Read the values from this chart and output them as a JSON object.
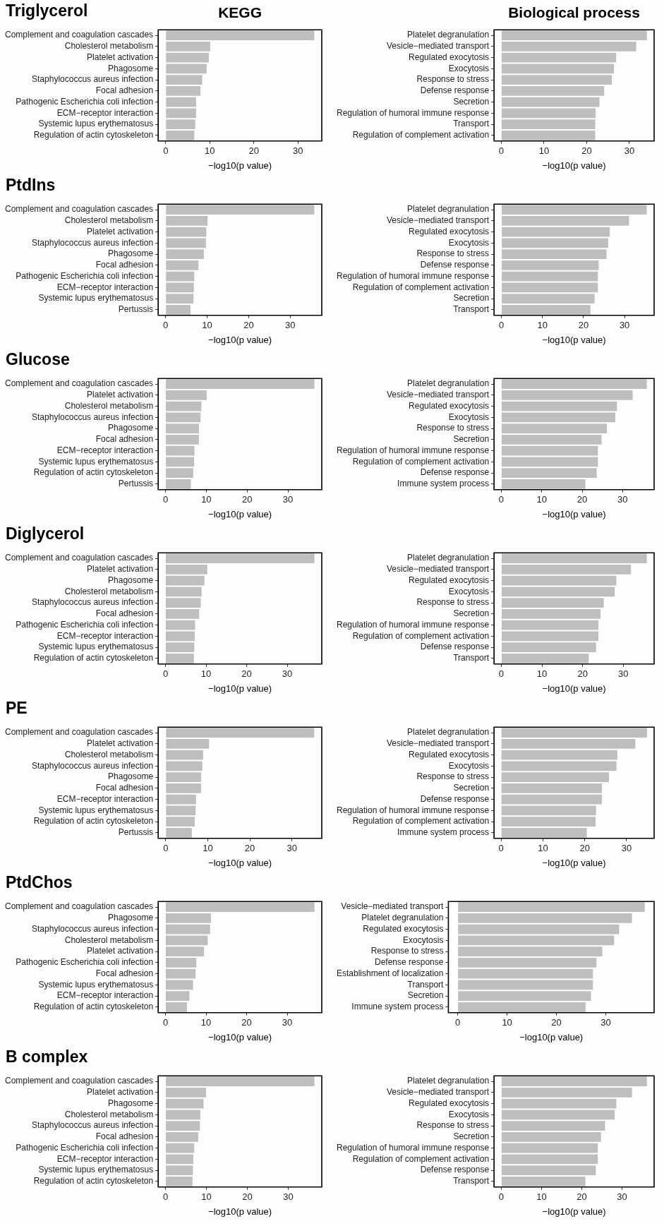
{
  "chart_data": [
    {
      "type": "bar",
      "orientation": "horizontal",
      "title": "Triglycerol",
      "subtitle": "KEGG",
      "categories": [
        "Complement and coagulation cascades",
        "Cholesterol metabolism",
        "Platelet activation",
        "Phagosome",
        "Staphylococcus aureus infection",
        "Focal adhesion",
        "Pathogenic Escherichia coli infection",
        "ECM−receptor interaction",
        "Systemic lupus erythematosus",
        "Regulation of actin cytoskeleton"
      ],
      "values": [
        33.7,
        10.1,
        9.8,
        9.3,
        8.3,
        7.9,
        6.9,
        6.9,
        6.7,
        6.5
      ],
      "color": "#bebebe",
      "xlim": [
        -1.7,
        35.4
      ],
      "xticks": [
        0,
        10,
        20,
        30
      ],
      "xlabel": "−log10(p value)"
    },
    {
      "type": "bar",
      "orientation": "horizontal",
      "subtitle": "Biological process",
      "categories": [
        "Platelet degranulation",
        "Vesicle−mediated transport",
        "Regulated exocytosis",
        "Exocytosis",
        "Response to stress",
        "Defense response",
        "Secretion",
        "Regulation of humoral immune response",
        "Transport",
        "Regulation of complement activation"
      ],
      "values": [
        34.1,
        31.6,
        26.9,
        26.4,
        25.9,
        24.1,
        23.0,
        22.1,
        22.0,
        22.0
      ],
      "color": "#bebebe",
      "xlim": [
        -1.7,
        35.8
      ],
      "xticks": [
        0,
        10,
        20,
        30
      ],
      "xlabel": "−log10(p value)"
    },
    {
      "type": "bar",
      "orientation": "horizontal",
      "title": "PtdIns",
      "categories": [
        "Complement and coagulation cascades",
        "Cholesterol metabolism",
        "Platelet activation",
        "Staphylococcus aureus infection",
        "Phagosome",
        "Focal adhesion",
        "Pathogenic Escherichia coli infection",
        "ECM−receptor interaction",
        "Systemic lupus erythematosus",
        "Pertussis"
      ],
      "values": [
        35.8,
        10.1,
        9.8,
        9.7,
        9.2,
        7.9,
        6.9,
        6.8,
        6.7,
        6.0
      ],
      "color": "#bebebe",
      "xlim": [
        -1.8,
        37.6
      ],
      "xticks": [
        0,
        10,
        20,
        30
      ],
      "xlabel": "−log10(p value)"
    },
    {
      "type": "bar",
      "orientation": "horizontal",
      "categories": [
        "Platelet degranulation",
        "Vesicle−mediated transport",
        "Regulated exocytosis",
        "Exocytosis",
        "Response to stress",
        "Defense response",
        "Regulation of humoral immune response",
        "Regulation of complement activation",
        "Secretion",
        "Transport"
      ],
      "values": [
        35.4,
        31.1,
        26.4,
        26.0,
        25.6,
        23.7,
        23.5,
        23.5,
        22.7,
        21.7
      ],
      "color": "#bebebe",
      "xlim": [
        -1.8,
        37.2
      ],
      "xticks": [
        0,
        10,
        20,
        30
      ],
      "xlabel": "−log10(p value)"
    },
    {
      "type": "bar",
      "orientation": "horizontal",
      "title": "Glucose",
      "categories": [
        "Complement and coagulation cascades",
        "Platelet activation",
        "Cholesterol metabolism",
        "Staphylococcus aureus infection",
        "Phagosome",
        "Focal adhesion",
        "ECM−receptor interaction",
        "Systemic lupus erythematosus",
        "Regulation of actin cytoskeleton",
        "Pertussis"
      ],
      "values": [
        36.5,
        10.1,
        8.8,
        8.6,
        8.2,
        8.2,
        7.1,
        7.0,
        6.8,
        6.2
      ],
      "color": "#bebebe",
      "xlim": [
        -1.8,
        38.3
      ],
      "xticks": [
        0,
        10,
        20,
        30
      ],
      "xlabel": "−log10(p value)"
    },
    {
      "type": "bar",
      "orientation": "horizontal",
      "categories": [
        "Platelet degranulation",
        "Vesicle−mediated transport",
        "Regulated exocytosis",
        "Exocytosis",
        "Response to stress",
        "Secretion",
        "Regulation of humoral immune response",
        "Regulation of complement activation",
        "Defense response",
        "Immune system process"
      ],
      "values": [
        36.0,
        32.5,
        28.6,
        28.2,
        26.1,
        24.8,
        23.9,
        23.9,
        23.6,
        20.8
      ],
      "color": "#bebebe",
      "xlim": [
        -1.8,
        37.8
      ],
      "xticks": [
        0,
        10,
        20,
        30
      ],
      "xlabel": "−log10(p value)"
    },
    {
      "type": "bar",
      "orientation": "horizontal",
      "title": "Diglycerol",
      "categories": [
        "Complement and coagulation cascades",
        "Platelet activation",
        "Phagosome",
        "Cholesterol metabolism",
        "Staphylococcus aureus infection",
        "Focal adhesion",
        "Pathogenic Escherichia coli infection",
        "ECM−receptor interaction",
        "Systemic lupus erythematosus",
        "Regulation of actin cytoskeleton"
      ],
      "values": [
        36.7,
        10.3,
        9.6,
        8.9,
        8.7,
        8.3,
        7.3,
        7.2,
        7.1,
        7.0
      ],
      "color": "#bebebe",
      "xlim": [
        -1.8,
        38.5
      ],
      "xticks": [
        0,
        10,
        20,
        30
      ],
      "xlabel": "−log10(p value)"
    },
    {
      "type": "bar",
      "orientation": "horizontal",
      "categories": [
        "Platelet degranulation",
        "Vesicle−mediated transport",
        "Regulated exocytosis",
        "Exocytosis",
        "Response to stress",
        "Secretion",
        "Regulation of humoral immune response",
        "Regulation of complement activation",
        "Defense response",
        "Transport"
      ],
      "values": [
        35.8,
        31.9,
        28.3,
        27.9,
        25.2,
        24.4,
        23.9,
        23.9,
        23.3,
        21.5
      ],
      "color": "#bebebe",
      "xlim": [
        -1.8,
        37.6
      ],
      "xticks": [
        0,
        10,
        20,
        30
      ],
      "xlabel": "−log10(p value)"
    },
    {
      "type": "bar",
      "orientation": "horizontal",
      "title": "PE",
      "categories": [
        "Complement and coagulation cascades",
        "Platelet activation",
        "Cholesterol metabolism",
        "Staphylococcus aureus infection",
        "Phagosome",
        "Focal adhesion",
        "ECM−receptor interaction",
        "Systemic lupus erythematosus",
        "Regulation of actin cytoskeleton",
        "Pertussis"
      ],
      "values": [
        35.3,
        10.3,
        8.9,
        8.7,
        8.4,
        8.4,
        7.2,
        7.1,
        6.9,
        6.2
      ],
      "color": "#bebebe",
      "xlim": [
        -1.8,
        37.1
      ],
      "xticks": [
        0,
        10,
        20,
        30
      ],
      "xlabel": "−log10(p value)"
    },
    {
      "type": "bar",
      "orientation": "horizontal",
      "categories": [
        "Platelet degranulation",
        "Vesicle−mediated transport",
        "Regulated exocytosis",
        "Exocytosis",
        "Response to stress",
        "Secretion",
        "Defense response",
        "Regulation of humoral immune response",
        "Regulation of complement activation",
        "Immune system process"
      ],
      "values": [
        34.9,
        32.1,
        27.8,
        27.6,
        25.8,
        24.1,
        24.1,
        22.7,
        22.6,
        20.5
      ],
      "color": "#bebebe",
      "xlim": [
        -1.7,
        36.6
      ],
      "xticks": [
        0,
        10,
        20,
        30
      ],
      "xlabel": "−log10(p value)"
    },
    {
      "type": "bar",
      "orientation": "horizontal",
      "title": "PtdChos",
      "categories": [
        "Complement and coagulation cascades",
        "Phagosome",
        "Staphylococcus aureus infection",
        "Cholesterol metabolism",
        "Platelet activation",
        "Pathogenic Escherichia coli infection",
        "Focal adhesion",
        "Systemic lupus erythematosus",
        "ECM−receptor interaction",
        "Regulation of actin cytoskeleton"
      ],
      "values": [
        36.7,
        11.2,
        11.0,
        10.4,
        9.5,
        7.6,
        7.4,
        6.8,
        5.9,
        5.3
      ],
      "color": "#bebebe",
      "xlim": [
        -1.8,
        38.5
      ],
      "xticks": [
        0,
        10,
        20,
        30
      ],
      "xlabel": "−log10(p value)"
    },
    {
      "type": "bar",
      "orientation": "horizontal",
      "categories": [
        "Vesicle−mediated transport",
        "Platelet degranulation",
        "Regulated exocytosis",
        "Exocytosis",
        "Response to stress",
        "Defense response",
        "Establishment of localization",
        "Transport",
        "Secretion",
        "Immune system process"
      ],
      "values": [
        37.9,
        35.3,
        32.7,
        31.7,
        29.3,
        28.1,
        27.4,
        27.4,
        27.0,
        25.9
      ],
      "color": "#bebebe",
      "xlim": [
        -1.9,
        39.8
      ],
      "xticks": [
        0,
        10,
        20,
        30
      ],
      "xlabel": "−log10(p value)"
    },
    {
      "type": "bar",
      "orientation": "horizontal",
      "title": "B complex",
      "categories": [
        "Complement and coagulation cascades",
        "Platelet activation",
        "Phagosome",
        "Cholesterol metabolism",
        "Staphylococcus aureus infection",
        "Focal adhesion",
        "Pathogenic Escherichia coli infection",
        "ECM−receptor interaction",
        "Systemic lupus erythematosus",
        "Regulation of actin cytoskeleton"
      ],
      "values": [
        36.4,
        9.9,
        9.3,
        8.5,
        8.4,
        8.0,
        7.0,
        6.8,
        6.7,
        6.6
      ],
      "color": "#bebebe",
      "xlim": [
        -1.8,
        38.2
      ],
      "xticks": [
        0,
        10,
        20,
        30
      ],
      "xlabel": "−log10(p value)"
    },
    {
      "type": "bar",
      "orientation": "horizontal",
      "categories": [
        "Platelet degranulation",
        "Vesicle−mediated transport",
        "Regulated exocytosis",
        "Exocytosis",
        "Response to stress",
        "Secretion",
        "Regulation of humoral immune response",
        "Regulation of complement activation",
        "Defense response",
        "Transport"
      ],
      "values": [
        36.2,
        32.5,
        28.6,
        28.2,
        25.8,
        24.8,
        24.0,
        24.0,
        23.5,
        20.9
      ],
      "color": "#bebebe",
      "xlim": [
        -1.8,
        38.0
      ],
      "xticks": [
        0,
        10,
        20,
        30
      ],
      "xlabel": "−log10(p value)"
    }
  ]
}
